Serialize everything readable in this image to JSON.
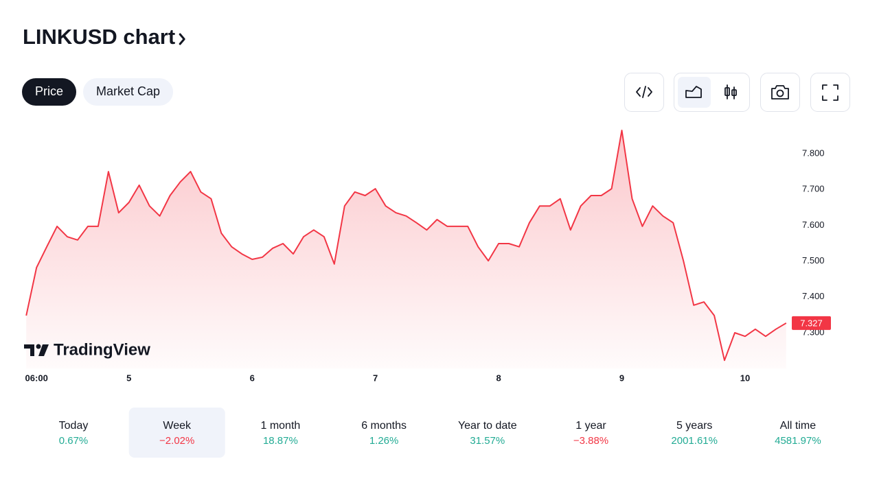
{
  "header": {
    "title": "LINKUSD chart"
  },
  "tabs": [
    {
      "label": "Price",
      "selected": true
    },
    {
      "label": "Market Cap",
      "selected": false
    }
  ],
  "chart_data": {
    "type": "line",
    "color": "#f23645",
    "x": [
      -2,
      0,
      2,
      4,
      6,
      8,
      10,
      12,
      14,
      16,
      18,
      20,
      22,
      24,
      26,
      28,
      30,
      32,
      34,
      36,
      38,
      40,
      42,
      44,
      46,
      48,
      50,
      52,
      54,
      56,
      58,
      60,
      62,
      64,
      66,
      68,
      70,
      72,
      74,
      76,
      78,
      80,
      82,
      84,
      86,
      88,
      90,
      92,
      94,
      96,
      98,
      100,
      102,
      104,
      106,
      108,
      110,
      112,
      114,
      116,
      118,
      120,
      122,
      124,
      126,
      128,
      130,
      132,
      134,
      136,
      138,
      140,
      142,
      144,
      146
    ],
    "values": [
      7.348,
      7.482,
      7.54,
      7.597,
      7.568,
      7.559,
      7.597,
      7.597,
      7.75,
      7.635,
      7.664,
      7.712,
      7.654,
      7.626,
      7.683,
      7.721,
      7.75,
      7.693,
      7.674,
      7.578,
      7.54,
      7.52,
      7.505,
      7.511,
      7.536,
      7.549,
      7.52,
      7.568,
      7.587,
      7.568,
      7.492,
      7.654,
      7.693,
      7.683,
      7.702,
      7.654,
      7.635,
      7.626,
      7.607,
      7.587,
      7.616,
      7.597,
      7.597,
      7.597,
      7.54,
      7.501,
      7.549,
      7.549,
      7.54,
      7.607,
      7.654,
      7.654,
      7.674,
      7.587,
      7.654,
      7.683,
      7.683,
      7.702,
      7.865,
      7.674,
      7.597,
      7.654,
      7.626,
      7.607,
      7.501,
      7.377,
      7.386,
      7.348,
      7.223,
      7.3,
      7.29,
      7.31,
      7.29,
      7.31,
      7.327
    ],
    "xlim": [
      -2.7,
      146.7
    ],
    "xticks": [
      {
        "value": 0,
        "label": "06:00"
      },
      {
        "value": 18,
        "label": "5"
      },
      {
        "value": 42,
        "label": "6"
      },
      {
        "value": 66,
        "label": "7"
      },
      {
        "value": 90,
        "label": "8"
      },
      {
        "value": 114,
        "label": "9"
      },
      {
        "value": 138,
        "label": "10"
      }
    ],
    "ylim": [
      7.2,
      7.88
    ],
    "yticks": [
      {
        "value": 7.3,
        "label": "7.300"
      },
      {
        "value": 7.4,
        "label": "7.400"
      },
      {
        "value": 7.5,
        "label": "7.500"
      },
      {
        "value": 7.6,
        "label": "7.600"
      },
      {
        "value": 7.7,
        "label": "7.700"
      },
      {
        "value": 7.8,
        "label": "7.800"
      }
    ],
    "last_price": 7.327,
    "watermark": "TradingView"
  },
  "performance": [
    {
      "period": "Today",
      "change": "0.67%",
      "color": "#22ab94",
      "selected": false
    },
    {
      "period": "Week",
      "change": "−2.02%",
      "color": "#f23645",
      "selected": true
    },
    {
      "period": "1 month",
      "change": "18.87%",
      "color": "#22ab94",
      "selected": false
    },
    {
      "period": "6 months",
      "change": "1.26%",
      "color": "#22ab94",
      "selected": false
    },
    {
      "period": "Year to date",
      "change": "31.57%",
      "color": "#22ab94",
      "selected": false
    },
    {
      "period": "1 year",
      "change": "−3.88%",
      "color": "#f23645",
      "selected": false
    },
    {
      "period": "5 years",
      "change": "2001.61%",
      "color": "#22ab94",
      "selected": false
    },
    {
      "period": "All time",
      "change": "4581.97%",
      "color": "#22ab94",
      "selected": false
    }
  ]
}
